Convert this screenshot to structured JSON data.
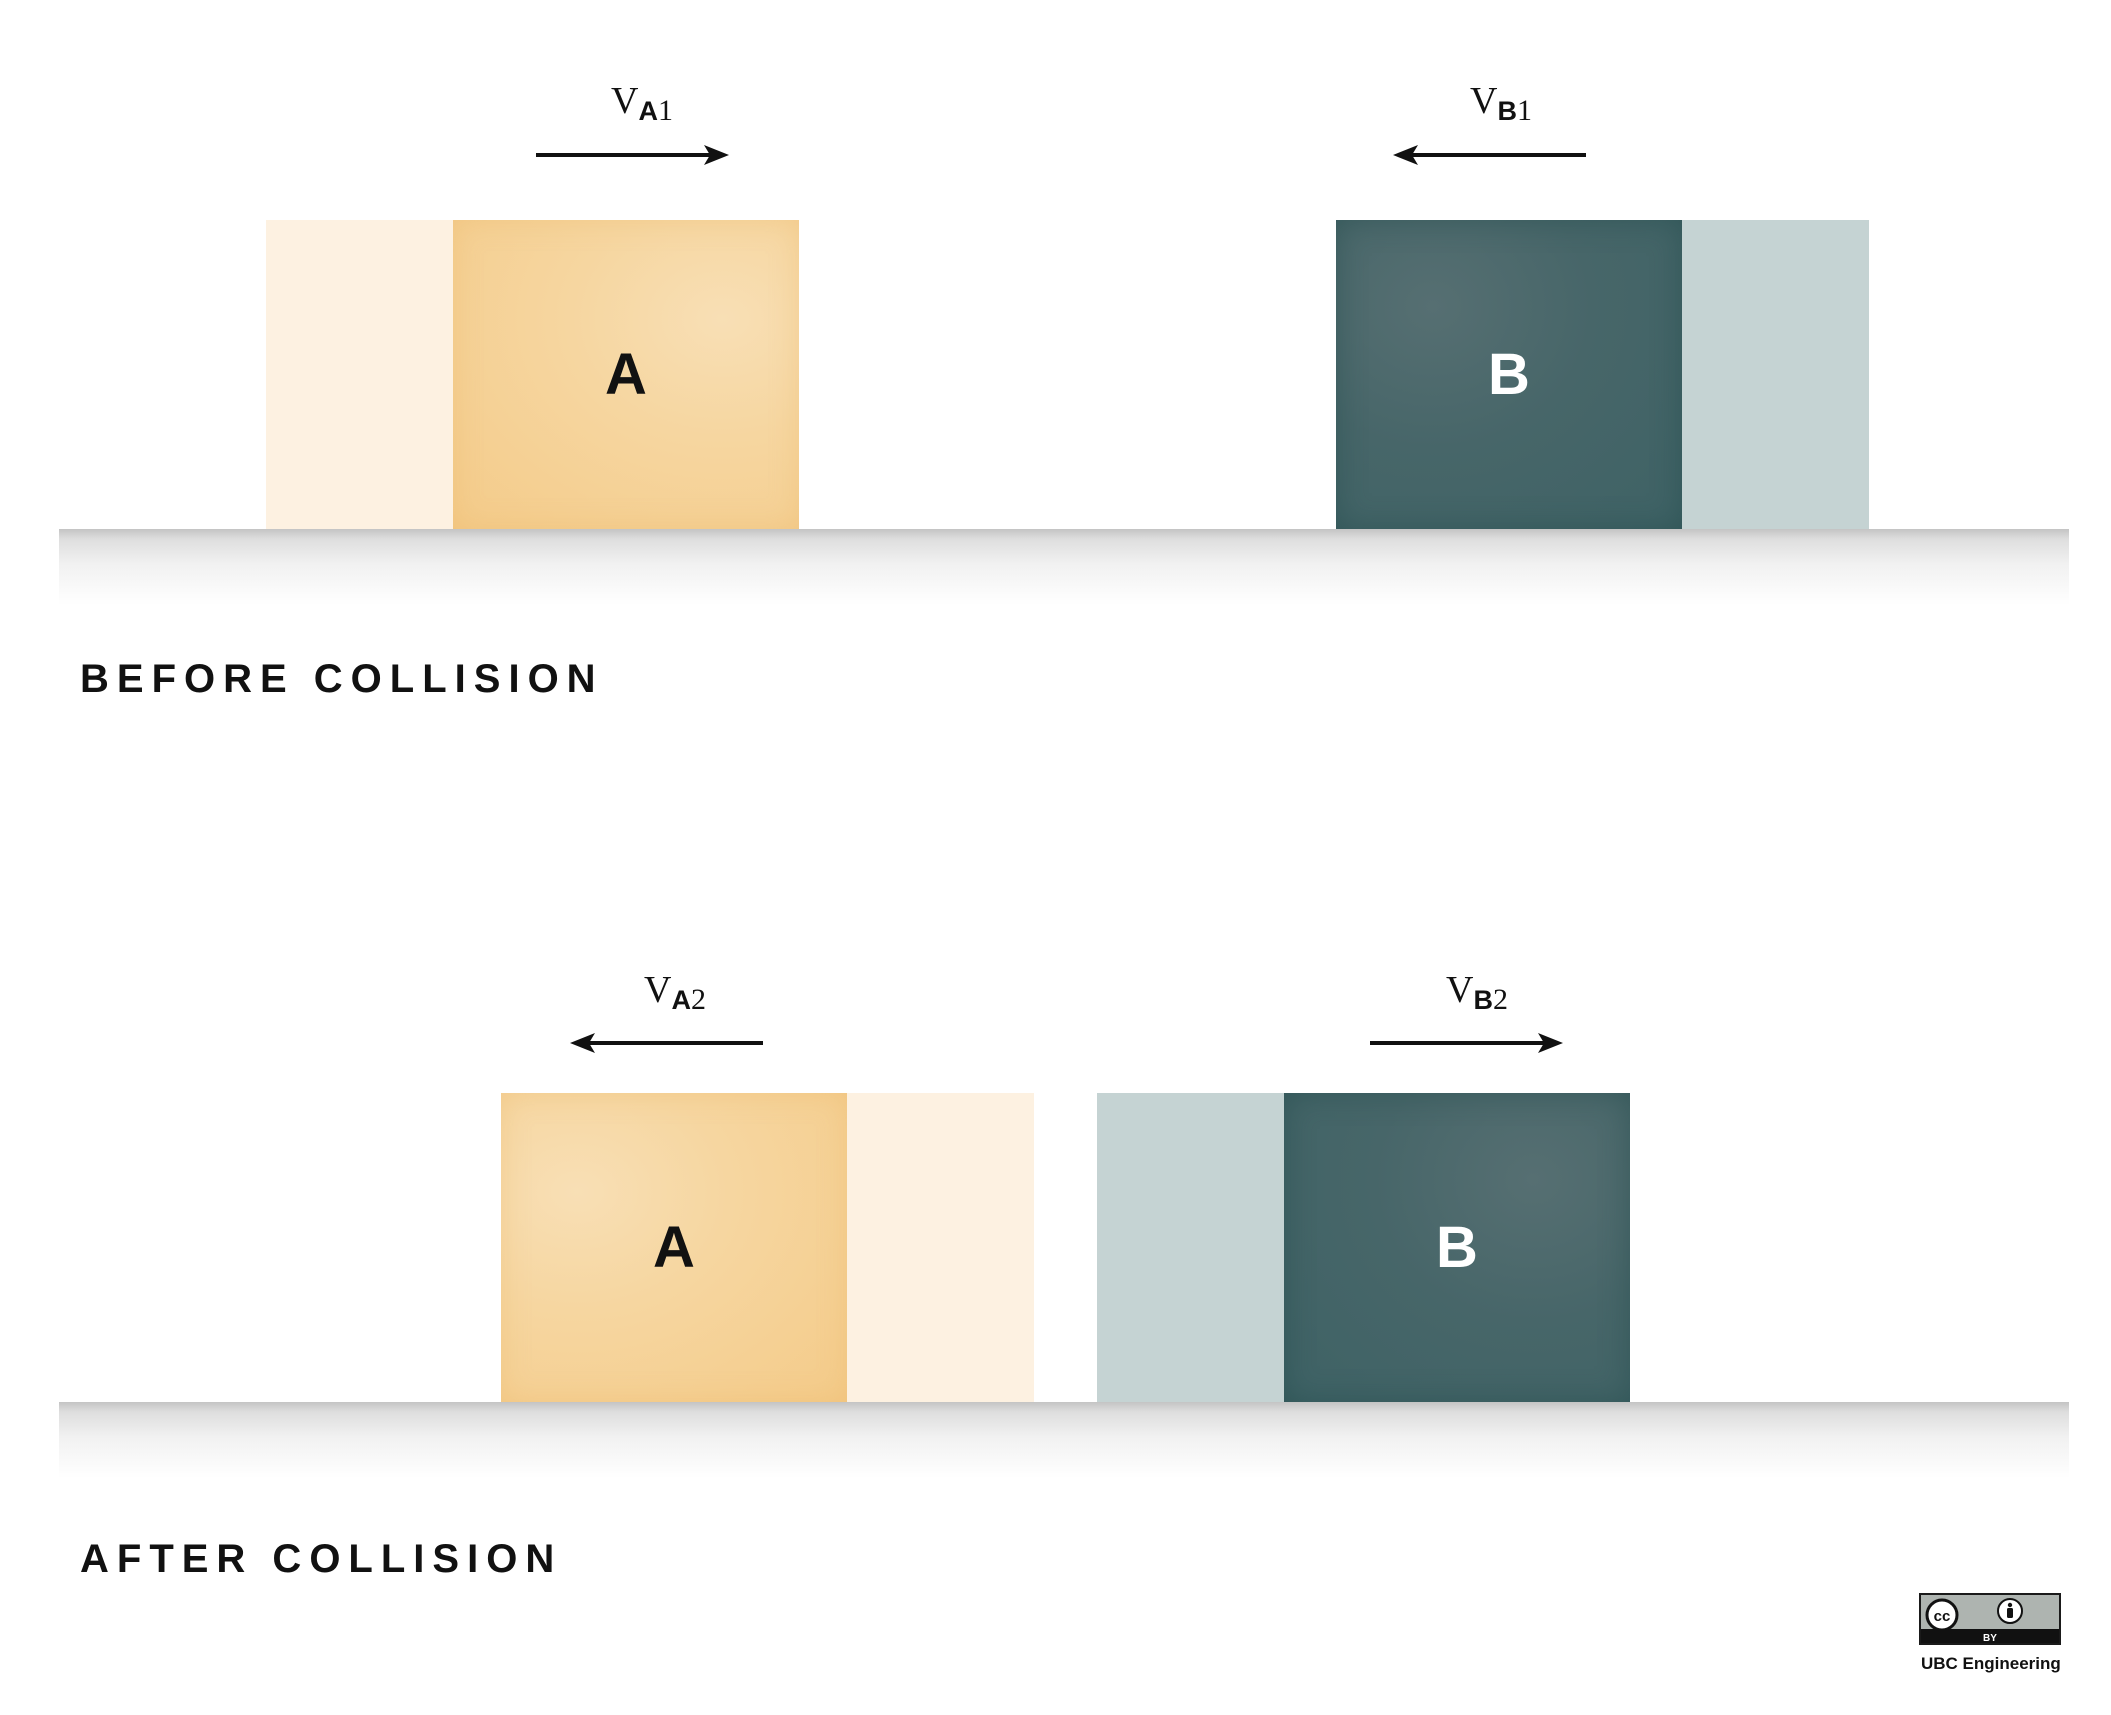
{
  "before": {
    "caption": "BEFORE COLLISION",
    "block_a_label": "A",
    "block_b_label": "B",
    "velocity_a": {
      "symbol": "V",
      "sub": "A",
      "num": "1",
      "direction": "right"
    },
    "velocity_b": {
      "symbol": "V",
      "sub": "B",
      "num": "1",
      "direction": "left"
    }
  },
  "after": {
    "caption": "AFTER COLLISION",
    "block_a_label": "A",
    "block_b_label": "B",
    "velocity_a": {
      "symbol": "V",
      "sub": "A",
      "num": "2",
      "direction": "left"
    },
    "velocity_b": {
      "symbol": "V",
      "sub": "B",
      "num": "2",
      "direction": "right"
    }
  },
  "license": {
    "badge_left": "cc",
    "badge_right": "by-icon",
    "badge_text": "BY",
    "credit": "UBC Engineering"
  },
  "colors": {
    "block_a": "#f4cb89",
    "block_a_ghost": "#fdf1e1",
    "block_b": "#3e6265",
    "block_b_ghost": "#c5d3d3"
  }
}
